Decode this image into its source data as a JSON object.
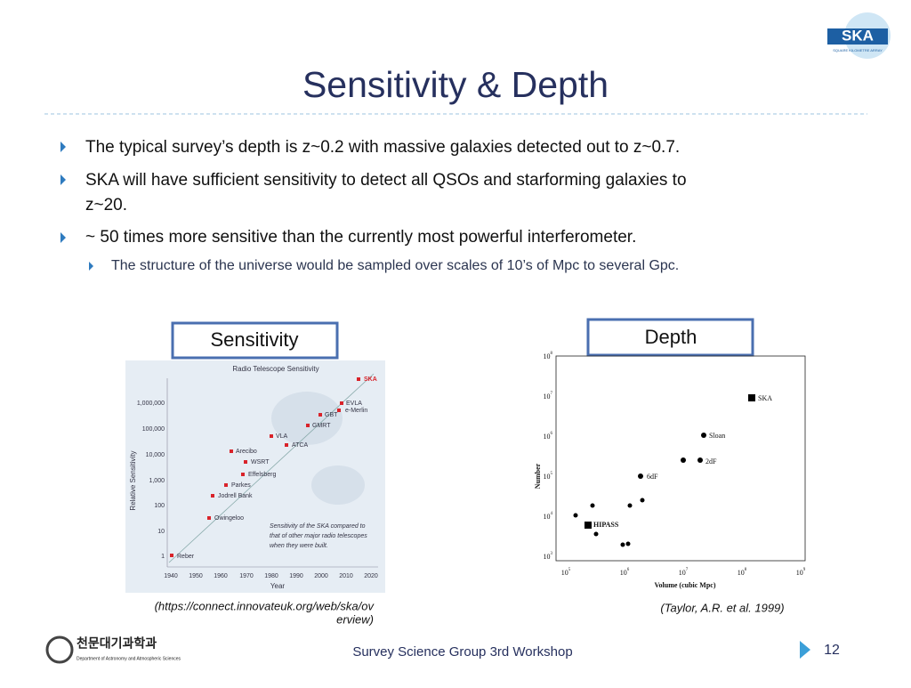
{
  "logo": {
    "name": "SKA",
    "tagline": "SQUARE KILOMETRE ARRAY"
  },
  "header": {
    "title": "Sensitivity & Depth"
  },
  "bullets": [
    {
      "lines": [
        "The typical survey’s depth is z~0.2 with massive galaxies detected out to z~0.7."
      ]
    },
    {
      "lines": [
        "SKA will have sufficient sensitivity to detect all QSOs and starforming galaxies to",
        "z~20."
      ]
    },
    {
      "lines": [
        "~ 50 times more sensitive than the currently most powerful interferometer."
      ],
      "sub": [
        "The structure of the universe would be sampled over scales of 10’s of Mpc to several Gpc."
      ]
    }
  ],
  "panels": [
    {
      "label": "Sensitivity",
      "figure": {
        "title": "Radio Telescope Sensitivity",
        "ylabel": "Relative Sensitivity",
        "xlabel": "Year",
        "yticks": [
          "1,000,000",
          "100,000",
          "10,000",
          "1,000",
          "100",
          "10",
          "1"
        ],
        "xticks": [
          "1940",
          "1950",
          "1960",
          "1970",
          "1980",
          "1990",
          "2000",
          "2010",
          "2020"
        ],
        "points": [
          "Reber",
          "Owingeloo",
          "Jodrell Bank",
          "Parkes",
          "Effelsberg",
          "WSRT",
          "Arecibo",
          "ATCA",
          "VLA",
          "GMRT",
          "GBT",
          "e-Merlin",
          "EVLA",
          "SKA"
        ],
        "note": [
          "Sensitivity of the SKA compared to",
          "that of other major radio telescopes",
          "when they were built."
        ]
      },
      "caption": [
        "(https://connect.innovateuk.org/web/ska/ov",
        "erview)"
      ]
    },
    {
      "label": "Depth",
      "figure": {
        "ylabel": "Number",
        "xlabel": "Volume (cubic Mpc)",
        "yticks": [
          {
            "base": "10",
            "exp": "8"
          },
          {
            "base": "10",
            "exp": "7"
          },
          {
            "base": "10",
            "exp": "6"
          },
          {
            "base": "10",
            "exp": "5"
          },
          {
            "base": "10",
            "exp": "4"
          },
          {
            "base": "10",
            "exp": "3"
          }
        ],
        "xticks": [
          {
            "base": "10",
            "exp": "5"
          },
          {
            "base": "10",
            "exp": "6"
          },
          {
            "base": "10",
            "exp": "7"
          },
          {
            "base": "10",
            "exp": "8"
          },
          {
            "base": "10",
            "exp": "9"
          }
        ],
        "points": [
          "SKA",
          "Sloan",
          "2dF",
          "6dF",
          "HIPASS"
        ]
      },
      "caption": [
        "(Taylor, A.R. et al. 1999)"
      ]
    }
  ],
  "footer": {
    "dept_kr": "천문대기과학과",
    "dept_en": "Department of Astronomy and Atmospheric Sciences",
    "event": "Survey Science Group 3rd Workshop",
    "page": "12"
  }
}
